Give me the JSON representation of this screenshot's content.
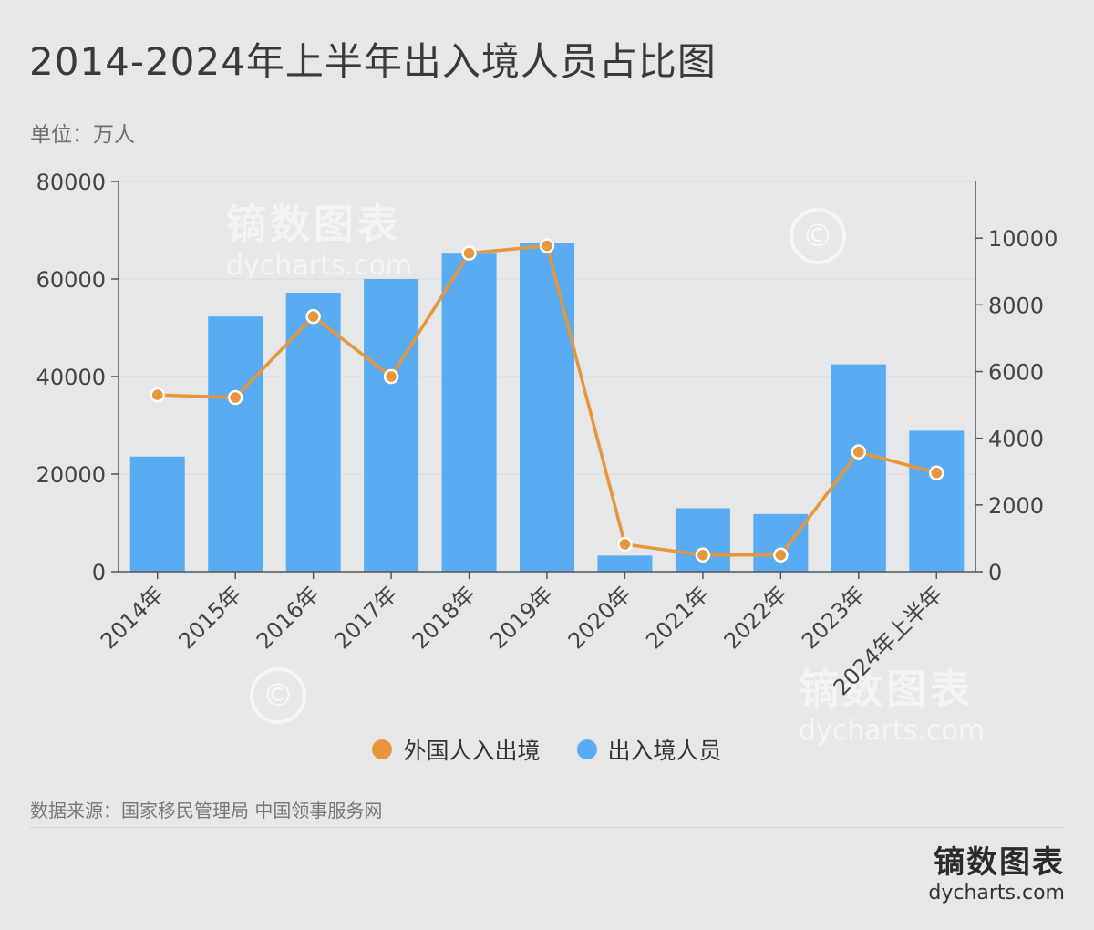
{
  "title": "2014-2024年上半年出入境人员占比图",
  "unit": "单位：万人",
  "legend": {
    "foreign": "外国人入出境",
    "total": "出入境人员"
  },
  "source": "数据来源：国家移民管理局 中国领事服务网",
  "brand": {
    "name": "镝数图表",
    "url": "dycharts.com"
  },
  "watermark": {
    "name": "镝数图表",
    "url": "dycharts.com",
    "symbol": "©"
  },
  "colors": {
    "bar": "#5aacf2",
    "line": "#e8963a",
    "axis": "#555555",
    "grid": "#d6d9da"
  },
  "chart_data": {
    "type": "bar+line",
    "categories": [
      "2014年",
      "2015年",
      "2016年",
      "2017年",
      "2018年",
      "2019年",
      "2020年",
      "2021年",
      "2022年",
      "2023年",
      "2024年上半年"
    ],
    "series": [
      {
        "name": "出入境人员",
        "type": "bar",
        "axis": "left",
        "values": [
          23600,
          52300,
          57200,
          60000,
          65200,
          67400,
          3300,
          13000,
          11800,
          42500,
          28900
        ]
      },
      {
        "name": "外国人入出境",
        "type": "line",
        "axis": "right",
        "values": [
          5300,
          5220,
          7650,
          5850,
          9550,
          9770,
          820,
          500,
          500,
          3590,
          2960
        ]
      }
    ],
    "y_left": {
      "min": 0,
      "max": 80000,
      "ticks": [
        0,
        20000,
        40000,
        60000,
        80000
      ]
    },
    "y_right": {
      "min": 0,
      "max": 11700,
      "ticks": [
        0,
        2000,
        4000,
        6000,
        8000,
        10000
      ]
    },
    "grid": true
  }
}
